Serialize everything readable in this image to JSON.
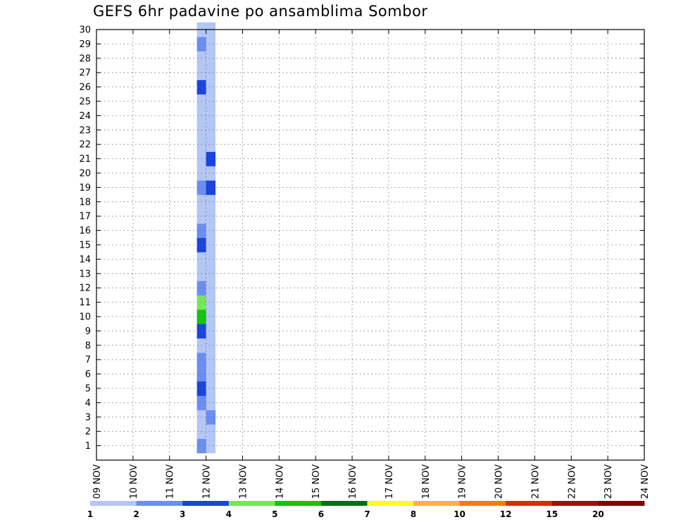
{
  "chart_data": {
    "type": "heatmap",
    "title": "GEFS 6hr padavine po ansamblima Sombor",
    "xlabel": "",
    "ylabel": "",
    "x_ticks": [
      "09 NOV",
      "10 NOV",
      "11 NOV",
      "12 NOV",
      "13 NOV",
      "14 NOV",
      "15 NOV",
      "16 NOV",
      "17 NOV",
      "18 NOV",
      "19 NOV",
      "20 NOV",
      "21 NOV",
      "22 NOV",
      "23 NOV",
      "24 NOV"
    ],
    "y_ticks": [
      1,
      2,
      3,
      4,
      5,
      6,
      7,
      8,
      9,
      10,
      11,
      12,
      13,
      14,
      15,
      16,
      17,
      18,
      19,
      20,
      21,
      22,
      23,
      24,
      25,
      26,
      27,
      28,
      29,
      30
    ],
    "xlim": [
      0,
      60
    ],
    "ylim": [
      0,
      30
    ],
    "x_unit": "6-hour steps from 09 NOV 00Z",
    "y_unit": "ensemble member",
    "grid": true,
    "colorbar": {
      "labels": [
        "1",
        "2",
        "3",
        "4",
        "5",
        "6",
        "7",
        "8",
        "10",
        "12",
        "15",
        "20"
      ],
      "colors": [
        "#b4c6f5",
        "#6c8ef0",
        "#1a44dc",
        "#78e65a",
        "#14c314",
        "#0a6e14",
        "#ffff14",
        "#ffb43c",
        "#ff7814",
        "#e1280a",
        "#aa0a0a",
        "#820000"
      ]
    },
    "cells": [
      [
        11.5,
        1,
        2
      ],
      [
        11.5,
        2,
        1
      ],
      [
        11.5,
        3,
        1
      ],
      [
        11.5,
        4,
        2
      ],
      [
        11.5,
        5,
        3
      ],
      [
        11.5,
        6,
        2
      ],
      [
        11.5,
        7,
        2
      ],
      [
        11.5,
        8,
        1
      ],
      [
        11.5,
        9,
        3
      ],
      [
        11.5,
        10,
        5
      ],
      [
        11.5,
        11,
        4
      ],
      [
        11.5,
        12,
        2
      ],
      [
        11.5,
        13,
        1
      ],
      [
        11.5,
        14,
        1
      ],
      [
        11.5,
        15,
        3
      ],
      [
        11.5,
        16,
        2
      ],
      [
        11.5,
        17,
        1
      ],
      [
        11.5,
        18,
        1
      ],
      [
        11.5,
        19,
        2
      ],
      [
        11.5,
        20,
        1
      ],
      [
        11.5,
        21,
        1
      ],
      [
        11.5,
        22,
        1
      ],
      [
        11.5,
        23,
        1
      ],
      [
        11.5,
        24,
        1
      ],
      [
        11.5,
        25,
        1
      ],
      [
        11.5,
        26,
        3
      ],
      [
        11.5,
        27,
        1
      ],
      [
        11.5,
        28,
        1
      ],
      [
        11.5,
        29,
        2
      ],
      [
        11.5,
        30,
        1
      ],
      [
        12.5,
        1,
        1
      ],
      [
        12.5,
        2,
        1
      ],
      [
        12.5,
        3,
        2
      ],
      [
        12.5,
        4,
        1
      ],
      [
        12.5,
        5,
        1
      ],
      [
        12.5,
        6,
        1
      ],
      [
        12.5,
        7,
        1
      ],
      [
        12.5,
        8,
        1
      ],
      [
        12.5,
        9,
        1
      ],
      [
        12.5,
        10,
        1
      ],
      [
        12.5,
        11,
        1
      ],
      [
        12.5,
        12,
        1
      ],
      [
        12.5,
        13,
        1
      ],
      [
        12.5,
        14,
        1
      ],
      [
        12.5,
        15,
        1
      ],
      [
        12.5,
        16,
        1
      ],
      [
        12.5,
        17,
        1
      ],
      [
        12.5,
        18,
        1
      ],
      [
        12.5,
        19,
        3
      ],
      [
        12.5,
        20,
        1
      ],
      [
        12.5,
        21,
        3
      ],
      [
        12.5,
        22,
        1
      ],
      [
        12.5,
        23,
        1
      ],
      [
        12.5,
        24,
        1
      ],
      [
        12.5,
        25,
        1
      ],
      [
        12.5,
        26,
        1
      ],
      [
        12.5,
        27,
        1
      ],
      [
        12.5,
        28,
        1
      ],
      [
        12.5,
        29,
        1
      ],
      [
        12.5,
        30,
        1
      ]
    ],
    "series": []
  }
}
